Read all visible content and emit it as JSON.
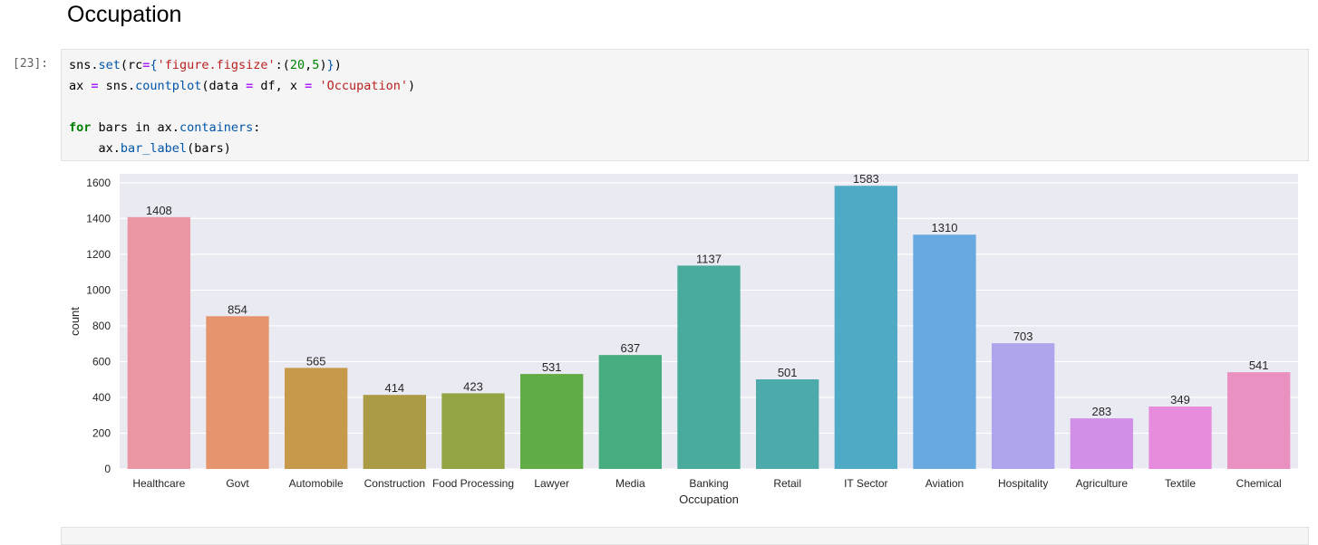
{
  "notebook": {
    "heading": "Occupation",
    "cell_prompt": "[23]:",
    "code_lines": [
      "sns.set(rc={'figure.figsize':(20,5)})",
      "ax = sns.countplot(data = df, x = 'Occupation')",
      "",
      "for bars in ax.containers:",
      "    ax.bar_label(bars)"
    ]
  },
  "chart_data": {
    "type": "bar",
    "xlabel": "Occupation",
    "ylabel": "count",
    "ylim": [
      0,
      1650
    ],
    "yticks": [
      0,
      200,
      400,
      600,
      800,
      1000,
      1200,
      1400,
      1600
    ],
    "grid": true,
    "categories": [
      "Healthcare",
      "Govt",
      "Automobile",
      "Construction",
      "Food Processing",
      "Lawyer",
      "Media",
      "Banking",
      "Retail",
      "IT Sector",
      "Aviation",
      "Hospitality",
      "Agriculture",
      "Textile",
      "Chemical"
    ],
    "values": [
      1408,
      854,
      565,
      414,
      423,
      531,
      637,
      1137,
      501,
      1583,
      1310,
      703,
      283,
      349,
      541
    ],
    "colors": [
      "#ea96a3",
      "#e5946d",
      "#c79a4b",
      "#ab9b44",
      "#93a543",
      "#60ad46",
      "#47ac7f",
      "#49ab9b",
      "#4caaaa",
      "#4eaac5",
      "#68aae0",
      "#ada6ec",
      "#d18fe8",
      "#e78cdc",
      "#e991c0"
    ],
    "background": "#eaeaf2"
  }
}
